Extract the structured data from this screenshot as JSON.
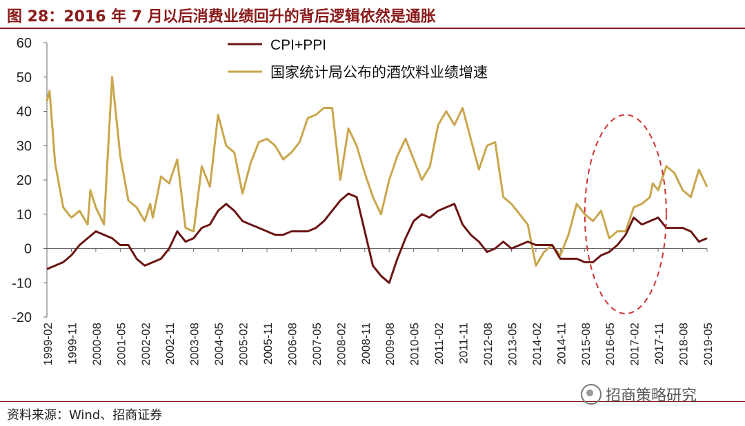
{
  "title": "图 28：2016 年 7 月以后消费业绩回升的背后逻辑依然是通胀",
  "source": "资料来源：Wind、招商证券",
  "watermark": "招商策略研究",
  "colors": {
    "brand": "#8b1a1a",
    "cpi_ppi": "#6b1414",
    "liquor": "#c9a64c",
    "ellipse": "#d03030"
  },
  "chart_data": {
    "type": "line",
    "ylim": [
      -20,
      60
    ],
    "yticks": [
      -20,
      -10,
      0,
      10,
      20,
      30,
      40,
      50,
      60
    ],
    "xticks": [
      "1999-02",
      "1999-11",
      "2000-08",
      "2001-05",
      "2002-02",
      "2002-11",
      "2003-08",
      "2004-05",
      "2005-02",
      "2005-11",
      "2006-08",
      "2007-05",
      "2008-02",
      "2008-11",
      "2009-08",
      "2010-05",
      "2011-02",
      "2011-11",
      "2012-08",
      "2013-05",
      "2014-02",
      "2014-11",
      "2015-08",
      "2016-05",
      "2017-02",
      "2017-11",
      "2018-08",
      "2019-05"
    ],
    "legend": {
      "placement": "top-center"
    },
    "series": [
      {
        "name": "CPI+PPI",
        "points": [
          [
            "1999-02",
            -6
          ],
          [
            "1999-08",
            -4
          ],
          [
            "1999-11",
            -2
          ],
          [
            "2000-02",
            1
          ],
          [
            "2000-05",
            3
          ],
          [
            "2000-08",
            5
          ],
          [
            "2000-11",
            4
          ],
          [
            "2001-02",
            3
          ],
          [
            "2001-05",
            1
          ],
          [
            "2001-08",
            1
          ],
          [
            "2001-11",
            -3
          ],
          [
            "2002-02",
            -5
          ],
          [
            "2002-05",
            -4
          ],
          [
            "2002-08",
            -3
          ],
          [
            "2002-11",
            0
          ],
          [
            "2003-02",
            5
          ],
          [
            "2003-05",
            2
          ],
          [
            "2003-08",
            3
          ],
          [
            "2003-11",
            6
          ],
          [
            "2004-02",
            7
          ],
          [
            "2004-05",
            11
          ],
          [
            "2004-08",
            13
          ],
          [
            "2004-11",
            11
          ],
          [
            "2005-02",
            8
          ],
          [
            "2005-05",
            7
          ],
          [
            "2005-08",
            6
          ],
          [
            "2005-11",
            5
          ],
          [
            "2006-02",
            4
          ],
          [
            "2006-05",
            4
          ],
          [
            "2006-08",
            5
          ],
          [
            "2006-11",
            5
          ],
          [
            "2007-02",
            5
          ],
          [
            "2007-05",
            6
          ],
          [
            "2007-08",
            8
          ],
          [
            "2007-11",
            11
          ],
          [
            "2008-02",
            14
          ],
          [
            "2008-05",
            16
          ],
          [
            "2008-08",
            15
          ],
          [
            "2008-11",
            5
          ],
          [
            "2009-02",
            -5
          ],
          [
            "2009-05",
            -8
          ],
          [
            "2009-08",
            -10
          ],
          [
            "2009-11",
            -3
          ],
          [
            "2010-02",
            3
          ],
          [
            "2010-05",
            8
          ],
          [
            "2010-08",
            10
          ],
          [
            "2010-11",
            9
          ],
          [
            "2011-02",
            11
          ],
          [
            "2011-05",
            12
          ],
          [
            "2011-08",
            13
          ],
          [
            "2011-11",
            7
          ],
          [
            "2012-02",
            4
          ],
          [
            "2012-05",
            2
          ],
          [
            "2012-08",
            -1
          ],
          [
            "2012-11",
            0
          ],
          [
            "2013-02",
            2
          ],
          [
            "2013-05",
            0
          ],
          [
            "2013-08",
            1
          ],
          [
            "2013-11",
            2
          ],
          [
            "2014-02",
            1
          ],
          [
            "2014-05",
            1
          ],
          [
            "2014-08",
            1
          ],
          [
            "2014-11",
            -3
          ],
          [
            "2015-02",
            -3
          ],
          [
            "2015-05",
            -3
          ],
          [
            "2015-08",
            -4
          ],
          [
            "2015-11",
            -4
          ],
          [
            "2016-02",
            -2
          ],
          [
            "2016-05",
            -1
          ],
          [
            "2016-08",
            1
          ],
          [
            "2016-11",
            4
          ],
          [
            "2017-02",
            9
          ],
          [
            "2017-05",
            7
          ],
          [
            "2017-08",
            8
          ],
          [
            "2017-11",
            9
          ],
          [
            "2018-02",
            6
          ],
          [
            "2018-05",
            6
          ],
          [
            "2018-08",
            6
          ],
          [
            "2018-11",
            5
          ],
          [
            "2019-02",
            2
          ],
          [
            "2019-05",
            3
          ]
        ]
      },
      {
        "name": "国家统计局公布的酒饮料业绩增速",
        "points": [
          [
            "1999-02",
            43
          ],
          [
            "1999-03",
            46
          ],
          [
            "1999-05",
            25
          ],
          [
            "1999-08",
            12
          ],
          [
            "1999-11",
            9
          ],
          [
            "2000-02",
            11
          ],
          [
            "2000-05",
            7
          ],
          [
            "2000-06",
            17
          ],
          [
            "2000-08",
            12
          ],
          [
            "2000-11",
            7
          ],
          [
            "2001-02",
            50
          ],
          [
            "2001-05",
            27
          ],
          [
            "2001-08",
            14
          ],
          [
            "2001-11",
            12
          ],
          [
            "2002-02",
            8
          ],
          [
            "2002-04",
            13
          ],
          [
            "2002-05",
            9
          ],
          [
            "2002-08",
            21
          ],
          [
            "2002-11",
            19
          ],
          [
            "2003-02",
            26
          ],
          [
            "2003-05",
            6
          ],
          [
            "2003-08",
            5
          ],
          [
            "2003-11",
            24
          ],
          [
            "2004-02",
            18
          ],
          [
            "2004-05",
            39
          ],
          [
            "2004-08",
            30
          ],
          [
            "2004-11",
            28
          ],
          [
            "2005-02",
            16
          ],
          [
            "2005-05",
            25
          ],
          [
            "2005-08",
            31
          ],
          [
            "2005-11",
            32
          ],
          [
            "2006-02",
            30
          ],
          [
            "2006-05",
            26
          ],
          [
            "2006-08",
            28
          ],
          [
            "2006-11",
            31
          ],
          [
            "2007-02",
            38
          ],
          [
            "2007-05",
            39
          ],
          [
            "2007-08",
            41
          ],
          [
            "2007-11",
            41
          ],
          [
            "2008-02",
            20
          ],
          [
            "2008-05",
            35
          ],
          [
            "2008-08",
            30
          ],
          [
            "2008-11",
            22
          ],
          [
            "2009-02",
            15
          ],
          [
            "2009-05",
            10
          ],
          [
            "2009-08",
            20
          ],
          [
            "2009-11",
            27
          ],
          [
            "2010-02",
            32
          ],
          [
            "2010-05",
            26
          ],
          [
            "2010-08",
            20
          ],
          [
            "2010-11",
            24
          ],
          [
            "2011-02",
            36
          ],
          [
            "2011-05",
            40
          ],
          [
            "2011-08",
            36
          ],
          [
            "2011-11",
            41
          ],
          [
            "2012-02",
            32
          ],
          [
            "2012-05",
            23
          ],
          [
            "2012-08",
            30
          ],
          [
            "2012-11",
            31
          ],
          [
            "2013-02",
            15
          ],
          [
            "2013-05",
            13
          ],
          [
            "2013-08",
            10
          ],
          [
            "2013-11",
            7
          ],
          [
            "2014-02",
            -5
          ],
          [
            "2014-05",
            -1
          ],
          [
            "2014-08",
            1
          ],
          [
            "2014-11",
            -2
          ],
          [
            "2015-02",
            4
          ],
          [
            "2015-05",
            13
          ],
          [
            "2015-08",
            10
          ],
          [
            "2015-11",
            8
          ],
          [
            "2016-02",
            11
          ],
          [
            "2016-05",
            3
          ],
          [
            "2016-08",
            5
          ],
          [
            "2016-11",
            5
          ],
          [
            "2017-02",
            12
          ],
          [
            "2017-05",
            13
          ],
          [
            "2017-08",
            15
          ],
          [
            "2017-09",
            19
          ],
          [
            "2017-11",
            17
          ],
          [
            "2018-02",
            24
          ],
          [
            "2018-05",
            22
          ],
          [
            "2018-08",
            17
          ],
          [
            "2018-11",
            15
          ],
          [
            "2019-02",
            23
          ],
          [
            "2019-05",
            18
          ]
        ]
      }
    ],
    "annotations": [
      {
        "type": "dashed-ellipse",
        "x_from": "2015-08",
        "x_to": "2018-02",
        "y_from": -19,
        "y_to": 39
      }
    ]
  }
}
